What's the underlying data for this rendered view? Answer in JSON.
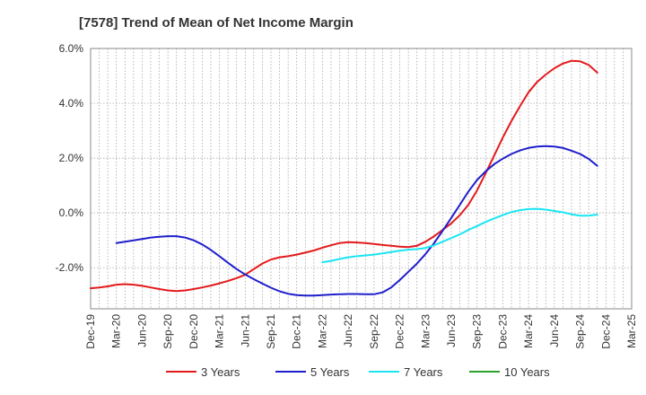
{
  "chart_data": {
    "type": "line",
    "title": "[7578]  Trend of Mean of Net Income Margin",
    "x": [
      "Dec-19",
      "Mar-20",
      "Jun-20",
      "Sep-20",
      "Dec-20",
      "Mar-21",
      "Jun-21",
      "Sep-21",
      "Dec-21",
      "Mar-22",
      "Jun-22",
      "Sep-22",
      "Dec-22",
      "Mar-23",
      "Jun-23",
      "Sep-23",
      "Dec-23",
      "Mar-24",
      "Jun-24",
      "Sep-24",
      "Dec-24",
      "Mar-25"
    ],
    "y_ticks": [
      "6.0%",
      "4.0%",
      "2.0%",
      "0.0%",
      "-2.0%"
    ],
    "ylim": [
      -3.5,
      6.0
    ],
    "grid": true,
    "legend_position": "bottom",
    "series": [
      {
        "name": "3 Years",
        "color": "#e31a1c",
        "values": [
          -2.75,
          -2.6,
          -2.65,
          -2.8,
          -2.8,
          -2.62,
          -2.35,
          -1.85,
          -1.6,
          -1.45,
          -1.2,
          -1.05,
          -1.15,
          -1.2,
          -0.95,
          -0.2,
          1.2,
          3.2,
          4.8,
          5.5,
          5.1,
          null
        ],
        "monthly": [
          -2.75,
          -2.72,
          -2.68,
          -2.62,
          -2.6,
          -2.62,
          -2.66,
          -2.72,
          -2.78,
          -2.83,
          -2.85,
          -2.83,
          -2.78,
          -2.72,
          -2.65,
          -2.57,
          -2.48,
          -2.38,
          -2.26,
          -2.05,
          -1.85,
          -1.7,
          -1.62,
          -1.58,
          -1.52,
          -1.45,
          -1.37,
          -1.27,
          -1.18,
          -1.1,
          -1.07,
          -1.08,
          -1.1,
          -1.13,
          -1.17,
          -1.2,
          -1.23,
          -1.25,
          -1.2,
          -1.05,
          -0.85,
          -0.62,
          -0.38,
          -0.08,
          0.3,
          0.82,
          1.45,
          2.1,
          2.75,
          3.35,
          3.9,
          4.4,
          4.78,
          5.05,
          5.28,
          5.45,
          5.55,
          5.53,
          5.4,
          5.12
        ]
      },
      {
        "name": "5 Years",
        "color": "#1f1fcc",
        "values": [
          null,
          -1.1,
          -0.9,
          -0.85,
          -1.2,
          -1.85,
          -2.4,
          -2.9,
          -3.05,
          -2.95,
          -2.95,
          -2.95,
          -2.7,
          -1.6,
          -0.3,
          1.0,
          1.9,
          2.4,
          2.4,
          2.15,
          1.7,
          null
        ],
        "monthly": [
          null,
          null,
          null,
          -1.1,
          -1.05,
          -1.0,
          -0.95,
          -0.9,
          -0.87,
          -0.85,
          -0.85,
          -0.9,
          -1.0,
          -1.15,
          -1.35,
          -1.58,
          -1.82,
          -2.05,
          -2.25,
          -2.42,
          -2.58,
          -2.73,
          -2.86,
          -2.95,
          -3.0,
          -3.02,
          -3.02,
          -3.0,
          -2.98,
          -2.97,
          -2.96,
          -2.96,
          -2.97,
          -2.97,
          -2.9,
          -2.72,
          -2.45,
          -2.15,
          -1.85,
          -1.5,
          -1.1,
          -0.65,
          -0.18,
          0.3,
          0.78,
          1.2,
          1.52,
          1.78,
          1.98,
          2.15,
          2.28,
          2.37,
          2.42,
          2.44,
          2.42,
          2.37,
          2.27,
          2.15,
          1.97,
          1.72
        ]
      },
      {
        "name": "7 Years",
        "color": "#19e6f2",
        "values": [
          null,
          null,
          null,
          null,
          null,
          null,
          null,
          null,
          null,
          -1.8,
          -1.6,
          -1.5,
          -1.35,
          -1.3,
          -1.05,
          -0.6,
          -0.2,
          0.05,
          0.1,
          -0.1,
          -0.05,
          null
        ],
        "monthly": [
          null,
          null,
          null,
          null,
          null,
          null,
          null,
          null,
          null,
          null,
          null,
          null,
          null,
          null,
          null,
          null,
          null,
          null,
          null,
          null,
          null,
          null,
          null,
          null,
          null,
          null,
          null,
          -1.8,
          -1.75,
          -1.68,
          -1.62,
          -1.58,
          -1.55,
          -1.52,
          -1.48,
          -1.43,
          -1.38,
          -1.34,
          -1.32,
          -1.28,
          -1.18,
          -1.05,
          -0.92,
          -0.78,
          -0.62,
          -0.48,
          -0.33,
          -0.2,
          -0.08,
          0.03,
          0.1,
          0.14,
          0.15,
          0.12,
          0.07,
          0.02,
          -0.05,
          -0.1,
          -0.1,
          -0.06
        ]
      },
      {
        "name": "10 Years",
        "color": "#2ca02c",
        "values": [
          null,
          null,
          null,
          null,
          null,
          null,
          null,
          null,
          null,
          null,
          null,
          null,
          null,
          null,
          null,
          null,
          null,
          null,
          null,
          null,
          null,
          null
        ]
      }
    ]
  }
}
